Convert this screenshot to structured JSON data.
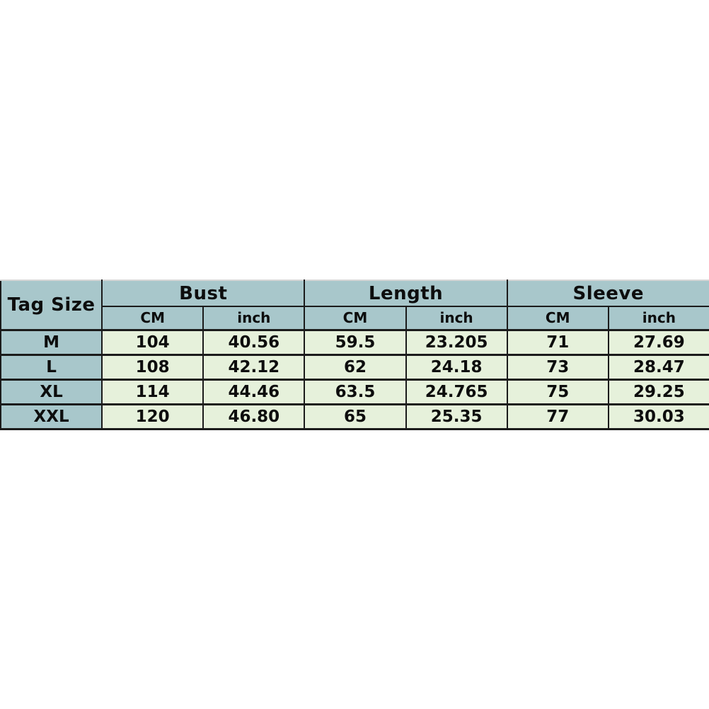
{
  "page": {
    "background_color": "#ffffff"
  },
  "colors": {
    "header_bg": "#a8c7cb",
    "data_cell_bg": "#e6f1db",
    "border": "#1b1b1b",
    "top_edge": "#d6d6d6",
    "text": "#0d0d0d"
  },
  "size_chart": {
    "corner_header": "Tag Size",
    "groups": [
      {
        "label": "Bust"
      },
      {
        "label": "Length"
      },
      {
        "label": "Sleeve"
      }
    ],
    "unit_headers": [
      "CM",
      "inch",
      "CM",
      "inch",
      "CM",
      "inch"
    ],
    "rows": [
      {
        "tag": "M",
        "values": [
          "104",
          "40.56",
          "59.5",
          "23.205",
          "71",
          "27.69"
        ]
      },
      {
        "tag": "L",
        "values": [
          "108",
          "42.12",
          "62",
          "24.18",
          "73",
          "28.47"
        ]
      },
      {
        "tag": "XL",
        "values": [
          "114",
          "44.46",
          "63.5",
          "24.765",
          "75",
          "29.25"
        ]
      },
      {
        "tag": "XXL",
        "values": [
          "120",
          "46.80",
          "65",
          "25.35",
          "77",
          "30.03"
        ]
      }
    ]
  },
  "chart_data": {
    "type": "table",
    "title": "Garment size chart",
    "columns": [
      "Tag Size",
      "Bust CM",
      "Bust inch",
      "Length CM",
      "Length inch",
      "Sleeve CM",
      "Sleeve inch"
    ],
    "rows": [
      [
        "M",
        104,
        40.56,
        59.5,
        23.205,
        71,
        27.69
      ],
      [
        "L",
        108,
        42.12,
        62,
        24.18,
        73,
        28.47
      ],
      [
        "XL",
        114,
        44.46,
        63.5,
        24.765,
        75,
        29.25
      ],
      [
        "XXL",
        120,
        46.8,
        65,
        25.35,
        77,
        30.03
      ]
    ],
    "layout": {
      "grid": true,
      "header_rows": 2,
      "position": "vertically-centered full-width"
    }
  }
}
